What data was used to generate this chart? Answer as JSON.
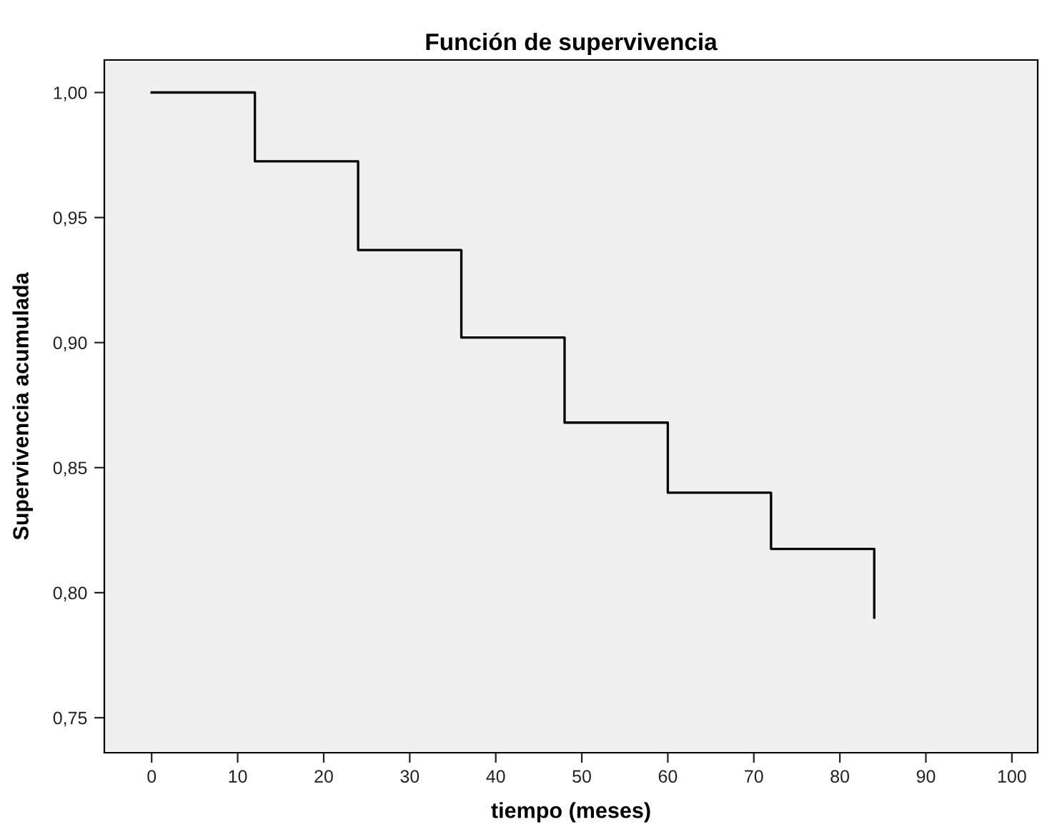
{
  "chart_data": {
    "type": "step",
    "title": "Función de supervivencia",
    "xlabel": "tiempo (meses)",
    "ylabel": "Supervivencia acumulada",
    "x": [
      0,
      12,
      24,
      36,
      48,
      60,
      72,
      84
    ],
    "series": [
      {
        "color": "#000000",
        "values": [
          1.0,
          0.9725,
          0.937,
          0.902,
          0.868,
          0.84,
          0.8175,
          0.79
        ]
      }
    ],
    "xlim": [
      -5.5,
      103
    ],
    "xticks": [
      0,
      10,
      20,
      30,
      40,
      50,
      60,
      70,
      80,
      90,
      100
    ],
    "ylim": [
      0.736,
      1.013
    ],
    "yticks": [
      {
        "value": 0.75,
        "label": "0,75"
      },
      {
        "value": 0.8,
        "label": "0,80"
      },
      {
        "value": 0.85,
        "label": "0,85"
      },
      {
        "value": 0.9,
        "label": "0,90"
      },
      {
        "value": 0.95,
        "label": "0,95"
      },
      {
        "value": 1.0,
        "label": "1,00"
      }
    ],
    "grid": false,
    "legend": false
  }
}
